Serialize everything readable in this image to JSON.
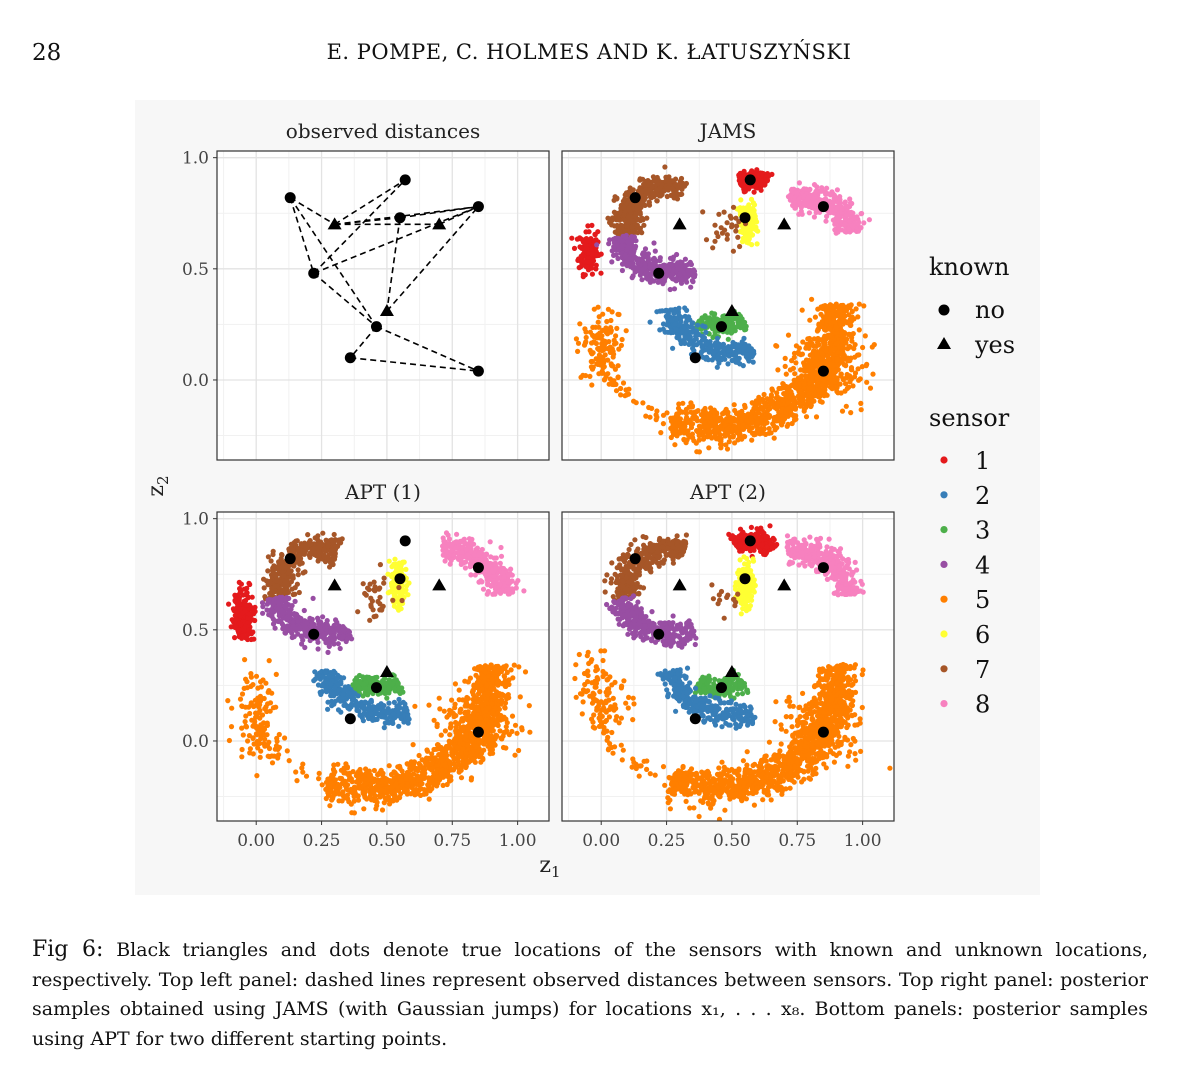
{
  "page": {
    "number": "28",
    "running_head": "E. POMPE, C. HOLMES AND K. ŁATUSZYŃSKI"
  },
  "caption": {
    "label": "Fig 6:",
    "text": "Black triangles and dots denote true locations of the sensors with known and unknown locations, respectively. Top left panel: dashed lines represent observed distances between sensors. Top right panel: posterior samples obtained using JAMS (with Gaussian jumps) for locations x₁, . . . x₈. Bottom panels: posterior samples using APT for two different starting points."
  },
  "chart_data": {
    "type": "scatter",
    "xlabel": "z1",
    "ylabel": "z2",
    "xlim": [
      -0.15,
      1.12
    ],
    "ylim": [
      -0.36,
      1.03
    ],
    "x_ticks": [
      0.0,
      0.25,
      0.5,
      0.75,
      1.0
    ],
    "x_tick_labels": [
      "0.00",
      "0.25",
      "0.50",
      "0.75",
      "1.00"
    ],
    "y_ticks": [
      0.0,
      0.5,
      1.0
    ],
    "y_tick_labels": [
      "0.0",
      "0.5",
      "1.0"
    ],
    "panels": [
      "observed distances",
      "JAMS",
      "APT (1)",
      "APT (2)"
    ],
    "legend_known": {
      "title": "known",
      "entries": [
        {
          "label": "no",
          "shape": "circle"
        },
        {
          "label": "yes",
          "shape": "triangle"
        }
      ]
    },
    "legend_sensor": {
      "title": "sensor",
      "entries": [
        {
          "label": "1",
          "color": "#E41A1C"
        },
        {
          "label": "2",
          "color": "#377EB8"
        },
        {
          "label": "3",
          "color": "#4DAF4A"
        },
        {
          "label": "4",
          "color": "#984EA3"
        },
        {
          "label": "5",
          "color": "#FF7F00"
        },
        {
          "label": "6",
          "color": "#FFFF33"
        },
        {
          "label": "7",
          "color": "#A65628"
        },
        {
          "label": "8",
          "color": "#F781BF"
        }
      ]
    },
    "unknown_sensors": [
      {
        "sensor": 1,
        "x": 0.57,
        "y": 0.9
      },
      {
        "sensor": 2,
        "x": 0.36,
        "y": 0.1
      },
      {
        "sensor": 3,
        "x": 0.46,
        "y": 0.24
      },
      {
        "sensor": 4,
        "x": 0.22,
        "y": 0.48
      },
      {
        "sensor": 5,
        "x": 0.85,
        "y": 0.04
      },
      {
        "sensor": 6,
        "x": 0.55,
        "y": 0.73
      },
      {
        "sensor": 7,
        "x": 0.13,
        "y": 0.82
      },
      {
        "sensor": 8,
        "x": 0.85,
        "y": 0.78
      }
    ],
    "known_sensors": [
      {
        "x": 0.3,
        "y": 0.7
      },
      {
        "x": 0.7,
        "y": 0.7
      },
      {
        "x": 0.5,
        "y": 0.31
      }
    ],
    "observed_distance_edges": [
      [
        [
          0.13,
          0.82
        ],
        [
          0.22,
          0.48
        ]
      ],
      [
        [
          0.13,
          0.82
        ],
        [
          0.3,
          0.7
        ]
      ],
      [
        [
          0.13,
          0.82
        ],
        [
          0.46,
          0.24
        ]
      ],
      [
        [
          0.3,
          0.7
        ],
        [
          0.57,
          0.9
        ]
      ],
      [
        [
          0.3,
          0.7
        ],
        [
          0.55,
          0.73
        ]
      ],
      [
        [
          0.3,
          0.7
        ],
        [
          0.7,
          0.7
        ]
      ],
      [
        [
          0.3,
          0.7
        ],
        [
          0.85,
          0.78
        ]
      ],
      [
        [
          0.22,
          0.48
        ],
        [
          0.57,
          0.9
        ]
      ],
      [
        [
          0.22,
          0.48
        ],
        [
          0.85,
          0.78
        ]
      ],
      [
        [
          0.22,
          0.48
        ],
        [
          0.46,
          0.24
        ]
      ],
      [
        [
          0.55,
          0.73
        ],
        [
          0.5,
          0.31
        ]
      ],
      [
        [
          0.55,
          0.73
        ],
        [
          0.85,
          0.78
        ]
      ],
      [
        [
          0.5,
          0.31
        ],
        [
          0.85,
          0.78
        ]
      ],
      [
        [
          0.46,
          0.24
        ],
        [
          0.36,
          0.1
        ]
      ],
      [
        [
          0.36,
          0.1
        ],
        [
          0.85,
          0.04
        ]
      ],
      [
        [
          0.46,
          0.24
        ],
        [
          0.85,
          0.04
        ]
      ],
      [
        [
          0.7,
          0.7
        ],
        [
          0.85,
          0.78
        ]
      ]
    ],
    "posterior_clouds": [
      {
        "panel": "JAMS",
        "clusters": [
          {
            "sensor": 1,
            "shape": "arc",
            "cx": 0.57,
            "cy": 0.78,
            "r": 0.12,
            "a0": 60,
            "a1": 110,
            "width": 0.022,
            "n": 140
          },
          {
            "sensor": 1,
            "shape": "blob",
            "cx": -0.05,
            "cy": 0.58,
            "sx": 0.018,
            "sy": 0.05,
            "n": 150
          },
          {
            "sensor": 8,
            "shape": "arc",
            "cx": 0.78,
            "cy": 0.65,
            "r": 0.17,
            "a0": 5,
            "a1": 110,
            "width": 0.028,
            "n": 330
          },
          {
            "sensor": 7,
            "shape": "arc",
            "cx": 0.26,
            "cy": 0.7,
            "r": 0.17,
            "a0": 70,
            "a1": 200,
            "width": 0.028,
            "n": 380
          },
          {
            "sensor": 6,
            "shape": "blob",
            "cx": 0.56,
            "cy": 0.71,
            "sx": 0.018,
            "sy": 0.045,
            "n": 130
          },
          {
            "sensor": 7,
            "shape": "blob",
            "cx": 0.48,
            "cy": 0.68,
            "sx": 0.035,
            "sy": 0.045,
            "n": 28
          },
          {
            "sensor": 4,
            "shape": "arc",
            "cx": 0.28,
            "cy": 0.7,
            "r": 0.22,
            "a0": 195,
            "a1": 290,
            "width": 0.028,
            "n": 330
          },
          {
            "sensor": 3,
            "shape": "arc",
            "cx": 0.45,
            "cy": 0.43,
            "r": 0.19,
            "a0": 245,
            "a1": 300,
            "width": 0.022,
            "n": 160
          },
          {
            "sensor": 2,
            "shape": "arc",
            "cx": 0.5,
            "cy": 0.36,
            "r": 0.24,
            "a0": 190,
            "a1": 290,
            "width": 0.026,
            "n": 300
          },
          {
            "sensor": 5,
            "shape": "arc",
            "cx": 0.43,
            "cy": 0.26,
            "r": 0.47,
            "a0": 250,
            "a1": 370,
            "width": 0.04,
            "n": 1100
          },
          {
            "sensor": 5,
            "shape": "arc",
            "cx": 0.43,
            "cy": 0.26,
            "r": 0.47,
            "a0": 200,
            "a1": 250,
            "width": 0.02,
            "n": 35
          },
          {
            "sensor": 5,
            "shape": "blob",
            "cx": 0.85,
            "cy": 0.06,
            "sx": 0.08,
            "sy": 0.08,
            "n": 200
          },
          {
            "sensor": 5,
            "shape": "blob",
            "cx": 0.0,
            "cy": 0.16,
            "sx": 0.04,
            "sy": 0.09,
            "n": 120
          }
        ]
      },
      {
        "panel": "APT (1)",
        "clusters": [
          {
            "sensor": 1,
            "shape": "blob",
            "cx": -0.05,
            "cy": 0.57,
            "sx": 0.02,
            "sy": 0.05,
            "n": 220
          },
          {
            "sensor": 8,
            "shape": "arc",
            "cx": 0.73,
            "cy": 0.64,
            "r": 0.22,
            "a0": 5,
            "a1": 95,
            "width": 0.028,
            "n": 360
          },
          {
            "sensor": 7,
            "shape": "arc",
            "cx": 0.26,
            "cy": 0.7,
            "r": 0.17,
            "a0": 70,
            "a1": 200,
            "width": 0.028,
            "n": 380
          },
          {
            "sensor": 6,
            "shape": "blob",
            "cx": 0.545,
            "cy": 0.71,
            "sx": 0.016,
            "sy": 0.05,
            "n": 160
          },
          {
            "sensor": 7,
            "shape": "blob",
            "cx": 0.46,
            "cy": 0.66,
            "sx": 0.035,
            "sy": 0.05,
            "n": 34
          },
          {
            "sensor": 4,
            "shape": "arc",
            "cx": 0.28,
            "cy": 0.7,
            "r": 0.22,
            "a0": 195,
            "a1": 290,
            "width": 0.028,
            "n": 330
          },
          {
            "sensor": 3,
            "shape": "arc",
            "cx": 0.45,
            "cy": 0.43,
            "r": 0.19,
            "a0": 245,
            "a1": 300,
            "width": 0.022,
            "n": 160
          },
          {
            "sensor": 2,
            "shape": "arc",
            "cx": 0.5,
            "cy": 0.36,
            "r": 0.24,
            "a0": 190,
            "a1": 290,
            "width": 0.026,
            "n": 300
          },
          {
            "sensor": 5,
            "shape": "arc",
            "cx": 0.43,
            "cy": 0.26,
            "r": 0.47,
            "a0": 250,
            "a1": 370,
            "width": 0.04,
            "n": 1100
          },
          {
            "sensor": 5,
            "shape": "arc",
            "cx": 0.43,
            "cy": 0.26,
            "r": 0.47,
            "a0": 200,
            "a1": 250,
            "width": 0.02,
            "n": 35
          },
          {
            "sensor": 5,
            "shape": "blob",
            "cx": 0.85,
            "cy": 0.06,
            "sx": 0.08,
            "sy": 0.08,
            "n": 200
          },
          {
            "sensor": 5,
            "shape": "blob",
            "cx": 0.0,
            "cy": 0.13,
            "sx": 0.04,
            "sy": 0.1,
            "n": 110
          }
        ]
      },
      {
        "panel": "APT (2)",
        "clusters": [
          {
            "sensor": 1,
            "shape": "arc",
            "cx": 0.57,
            "cy": 0.78,
            "r": 0.12,
            "a0": 45,
            "a1": 120,
            "width": 0.025,
            "n": 240
          },
          {
            "sensor": 8,
            "shape": "arc",
            "cx": 0.73,
            "cy": 0.64,
            "r": 0.22,
            "a0": 5,
            "a1": 95,
            "width": 0.028,
            "n": 340
          },
          {
            "sensor": 7,
            "shape": "arc",
            "cx": 0.26,
            "cy": 0.7,
            "r": 0.17,
            "a0": 70,
            "a1": 200,
            "width": 0.028,
            "n": 380
          },
          {
            "sensor": 6,
            "shape": "blob",
            "cx": 0.55,
            "cy": 0.7,
            "sx": 0.016,
            "sy": 0.05,
            "n": 160
          },
          {
            "sensor": 7,
            "shape": "blob",
            "cx": 0.47,
            "cy": 0.64,
            "sx": 0.03,
            "sy": 0.04,
            "n": 14
          },
          {
            "sensor": 4,
            "shape": "arc",
            "cx": 0.28,
            "cy": 0.7,
            "r": 0.22,
            "a0": 195,
            "a1": 290,
            "width": 0.028,
            "n": 330
          },
          {
            "sensor": 3,
            "shape": "arc",
            "cx": 0.45,
            "cy": 0.43,
            "r": 0.19,
            "a0": 245,
            "a1": 300,
            "width": 0.022,
            "n": 160
          },
          {
            "sensor": 2,
            "shape": "arc",
            "cx": 0.5,
            "cy": 0.36,
            "r": 0.24,
            "a0": 190,
            "a1": 290,
            "width": 0.026,
            "n": 300
          },
          {
            "sensor": 5,
            "shape": "arc",
            "cx": 0.43,
            "cy": 0.26,
            "r": 0.47,
            "a0": 250,
            "a1": 370,
            "width": 0.04,
            "n": 1100
          },
          {
            "sensor": 5,
            "shape": "arc",
            "cx": 0.43,
            "cy": 0.26,
            "r": 0.47,
            "a0": 200,
            "a1": 250,
            "width": 0.02,
            "n": 35
          },
          {
            "sensor": 5,
            "shape": "blob",
            "cx": 0.85,
            "cy": 0.06,
            "sx": 0.08,
            "sy": 0.08,
            "n": 200
          },
          {
            "sensor": 5,
            "shape": "blob",
            "cx": 0.0,
            "cy": 0.2,
            "sx": 0.045,
            "sy": 0.09,
            "n": 110
          }
        ]
      }
    ]
  }
}
